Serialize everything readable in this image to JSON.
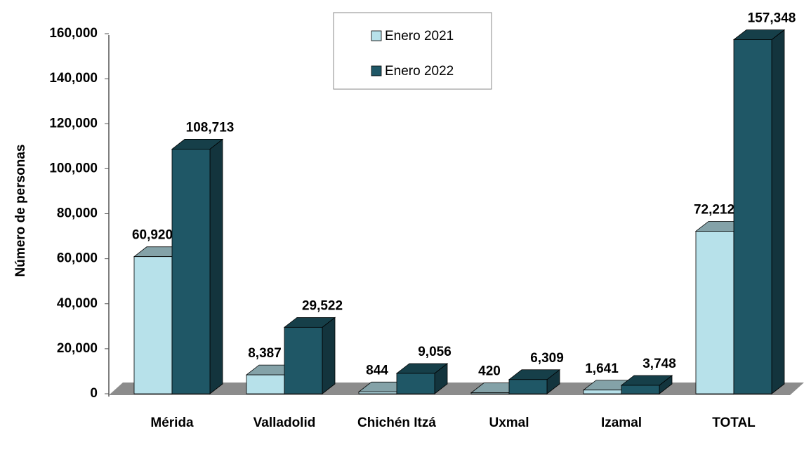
{
  "chart_data": {
    "type": "bar3d",
    "y_label": "Número de personas",
    "categories": [
      "Mérida",
      "Valladolid",
      "Chichén Itzá",
      "Uxmal",
      "Izamal",
      "TOTAL"
    ],
    "series": [
      {
        "name": "Enero 2021",
        "color": "#b7e1ea",
        "values": [
          60920,
          8387,
          844,
          420,
          1641,
          72212
        ],
        "value_labels": [
          "60,920",
          "8,387",
          "844",
          "420",
          "1,641",
          "72,212"
        ]
      },
      {
        "name": "Enero 2022",
        "color": "#1f5766",
        "values": [
          108713,
          29522,
          9056,
          6309,
          3748,
          157348
        ],
        "value_labels": [
          "108,713",
          "29,522",
          "9,056",
          "6,309",
          "3,748",
          "157,348"
        ]
      }
    ],
    "ylim": [
      0,
      160000
    ],
    "yticks": [
      {
        "value": 0,
        "label": "0"
      },
      {
        "value": 20000,
        "label": "20,000"
      },
      {
        "value": 40000,
        "label": "40,000"
      },
      {
        "value": 60000,
        "label": "60,000"
      },
      {
        "value": 80000,
        "label": "80,000"
      },
      {
        "value": 100000,
        "label": "100,000"
      },
      {
        "value": 120000,
        "label": "120,000"
      },
      {
        "value": 140000,
        "label": "140,000"
      },
      {
        "value": 160000,
        "label": "160,000"
      }
    ]
  }
}
